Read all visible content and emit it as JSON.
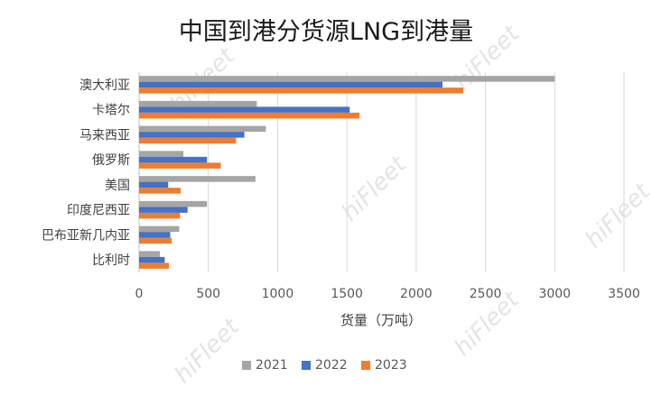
{
  "watermark_text": "hiFleet",
  "chart_data": {
    "type": "bar",
    "orientation": "horizontal",
    "title": "中国到港分货源LNG到港量",
    "xlabel": "货量（万吨）",
    "ylabel": "",
    "xlim": [
      0,
      3500
    ],
    "xticks": [
      0,
      500,
      1000,
      1500,
      2000,
      2500,
      3000,
      3500
    ],
    "grid": true,
    "legend_position": "bottom",
    "categories": [
      "澳大利亚",
      "卡塔尔",
      "马来西亚",
      "俄罗斯",
      "美国",
      "印度尼西亚",
      "巴布亚新几内亚",
      "比利时"
    ],
    "series": [
      {
        "name": "2021",
        "color": "#a5a5a5",
        "values": [
          3000,
          850,
          915,
          320,
          840,
          490,
          290,
          150
        ]
      },
      {
        "name": "2022",
        "color": "#4472c4",
        "values": [
          2190,
          1520,
          760,
          490,
          210,
          350,
          225,
          185
        ]
      },
      {
        "name": "2023",
        "color": "#ed7d31",
        "values": [
          2340,
          1590,
          700,
          590,
          300,
          295,
          235,
          215
        ]
      }
    ]
  }
}
